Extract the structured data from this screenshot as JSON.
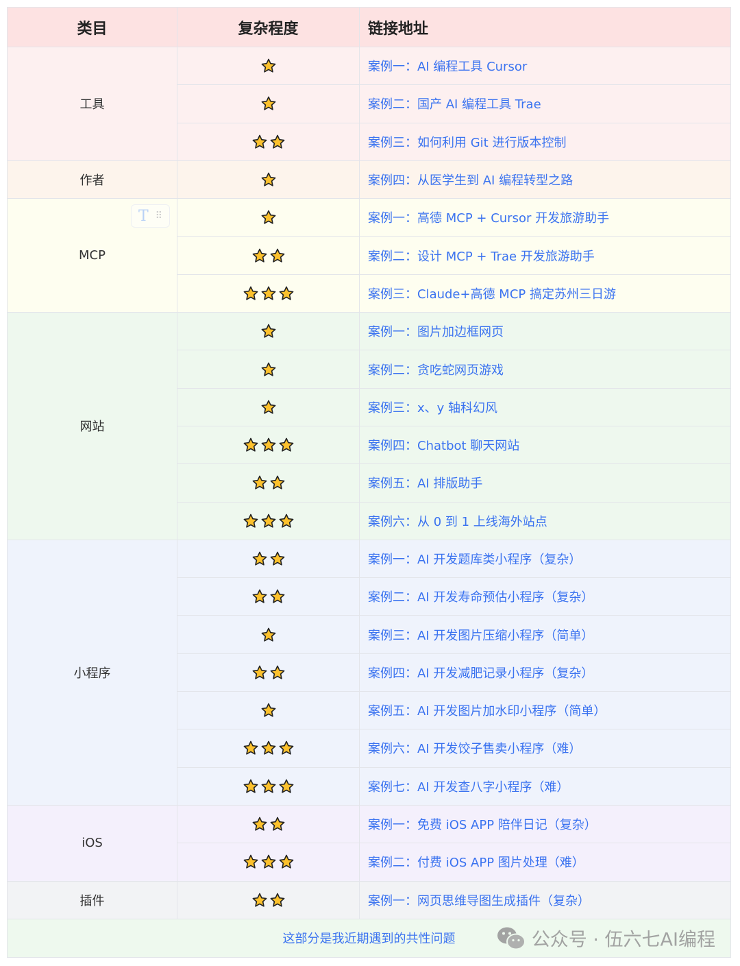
{
  "headers": [
    "类目",
    "复杂程度",
    "链接地址"
  ],
  "groups": [
    {
      "category": "工具",
      "color": "#fdf0f0",
      "rows": [
        {
          "stars": 1,
          "link": "案例一：AI 编程工具 Cursor"
        },
        {
          "stars": 1,
          "link": "案例二：国产 AI 编程工具 Trae"
        },
        {
          "stars": 2,
          "link": "案例三：如何利用 Git 进行版本控制"
        }
      ]
    },
    {
      "category": "作者",
      "color": "#fdf4ec",
      "rows": [
        {
          "stars": 1,
          "link": "案例四：从医学生到 AI 编程转型之路"
        }
      ]
    },
    {
      "category": "MCP",
      "color": "#fefef0",
      "rows": [
        {
          "stars": 1,
          "link": "案例一：高德 MCP + Cursor 开发旅游助手"
        },
        {
          "stars": 2,
          "link": "案例二：设计 MCP + Trae 开发旅游助手"
        },
        {
          "stars": 3,
          "link": "案例三：Claude+高德 MCP 搞定苏州三日游"
        }
      ]
    },
    {
      "category": "网站",
      "color": "#eef8ee",
      "rows": [
        {
          "stars": 1,
          "link": "案例一：图片加边框网页"
        },
        {
          "stars": 1,
          "link": "案例二：贪吃蛇网页游戏"
        },
        {
          "stars": 1,
          "link": "案例三：x、y 轴科幻风"
        },
        {
          "stars": 3,
          "link": "案例四：Chatbot 聊天网站"
        },
        {
          "stars": 2,
          "link": "案例五：AI 排版助手"
        },
        {
          "stars": 3,
          "link": "案例六：从 0 到 1 上线海外站点"
        }
      ]
    },
    {
      "category": "小程序",
      "color": "#eff3fc",
      "rows": [
        {
          "stars": 2,
          "link": "案例一：AI 开发题库类小程序（复杂）"
        },
        {
          "stars": 2,
          "link": "案例二：AI 开发寿命预估小程序（复杂）"
        },
        {
          "stars": 1,
          "link": "案例三：AI 开发图片压缩小程序（简单）"
        },
        {
          "stars": 2,
          "link": "案例四：AI 开发减肥记录小程序（复杂）"
        },
        {
          "stars": 1,
          "link": "案例五：AI 开发图片加水印小程序（简单）"
        },
        {
          "stars": 3,
          "link": "案例六：AI 开发饺子售卖小程序（难）"
        },
        {
          "stars": 3,
          "link": "案例七：AI 开发查八字小程序（难）"
        }
      ]
    },
    {
      "category": "iOS",
      "color": "#f4f0fc",
      "rows": [
        {
          "stars": 2,
          "link": "案例一：免费 iOS APP 陪伴日记（复杂）"
        },
        {
          "stars": 3,
          "link": "案例二：付费 iOS APP 图片处理（难）"
        }
      ]
    },
    {
      "category": "插件",
      "color": "#f2f3f5",
      "rows": [
        {
          "stars": 2,
          "link": "案例一：网页思维导图生成插件（复杂）"
        }
      ]
    }
  ],
  "footer": {
    "text": "这部分是我近期遇到的共性问题",
    "color": "#eef9ee"
  },
  "watermark": "公众号 · 伍六七AI编程",
  "toolbar_icon": "T",
  "colors": {
    "header": "#fde2e2",
    "link": "#3b73f0",
    "star": "#fcc12d"
  }
}
